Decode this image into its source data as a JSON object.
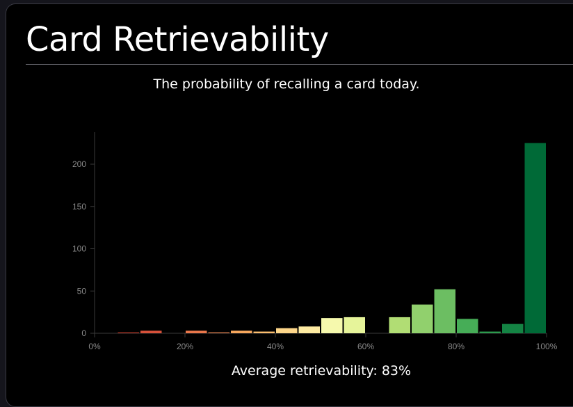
{
  "header": {
    "title": "Card Retrievability",
    "subtitle": "The probability of recalling a card today."
  },
  "footer": {
    "average_label": "Average retrievability:",
    "average_value": "83%"
  },
  "chart_data": {
    "type": "bar",
    "title": "Card Retrievability",
    "subtitle": "The probability of recalling a card today.",
    "xlabel": "",
    "ylabel": "",
    "xlim": [
      0,
      100
    ],
    "ylim": [
      0,
      240
    ],
    "x_ticks": [
      "0%",
      "20%",
      "40%",
      "60%",
      "80%",
      "100%"
    ],
    "y_ticks": [
      0,
      50,
      100,
      150,
      200
    ],
    "bin_width": 5,
    "bins": [
      {
        "start": 5,
        "end": 10,
        "value": 1,
        "color": "#c43c2c"
      },
      {
        "start": 10,
        "end": 15,
        "value": 3,
        "color": "#d7513a"
      },
      {
        "start": 20,
        "end": 25,
        "value": 3,
        "color": "#ea774b"
      },
      {
        "start": 25,
        "end": 30,
        "value": 1,
        "color": "#f08a55"
      },
      {
        "start": 30,
        "end": 35,
        "value": 3,
        "color": "#f7a75d"
      },
      {
        "start": 35,
        "end": 40,
        "value": 2,
        "color": "#fbbd6e"
      },
      {
        "start": 40,
        "end": 45,
        "value": 6,
        "color": "#fdd68a"
      },
      {
        "start": 45,
        "end": 50,
        "value": 8,
        "color": "#feeba2"
      },
      {
        "start": 50,
        "end": 55,
        "value": 18,
        "color": "#f6f9ad"
      },
      {
        "start": 55,
        "end": 60,
        "value": 19,
        "color": "#e6f49a"
      },
      {
        "start": 65,
        "end": 70,
        "value": 19,
        "color": "#b1dd74"
      },
      {
        "start": 70,
        "end": 75,
        "value": 34,
        "color": "#91d06d"
      },
      {
        "start": 75,
        "end": 80,
        "value": 52,
        "color": "#6cbe62"
      },
      {
        "start": 80,
        "end": 85,
        "value": 17,
        "color": "#46ad57"
      },
      {
        "start": 85,
        "end": 90,
        "value": 2,
        "color": "#2c9a4d"
      },
      {
        "start": 90,
        "end": 95,
        "value": 11,
        "color": "#148444"
      },
      {
        "start": 95,
        "end": 100,
        "value": 225,
        "color": "#006a37"
      }
    ],
    "grid": false,
    "legend": "none"
  }
}
